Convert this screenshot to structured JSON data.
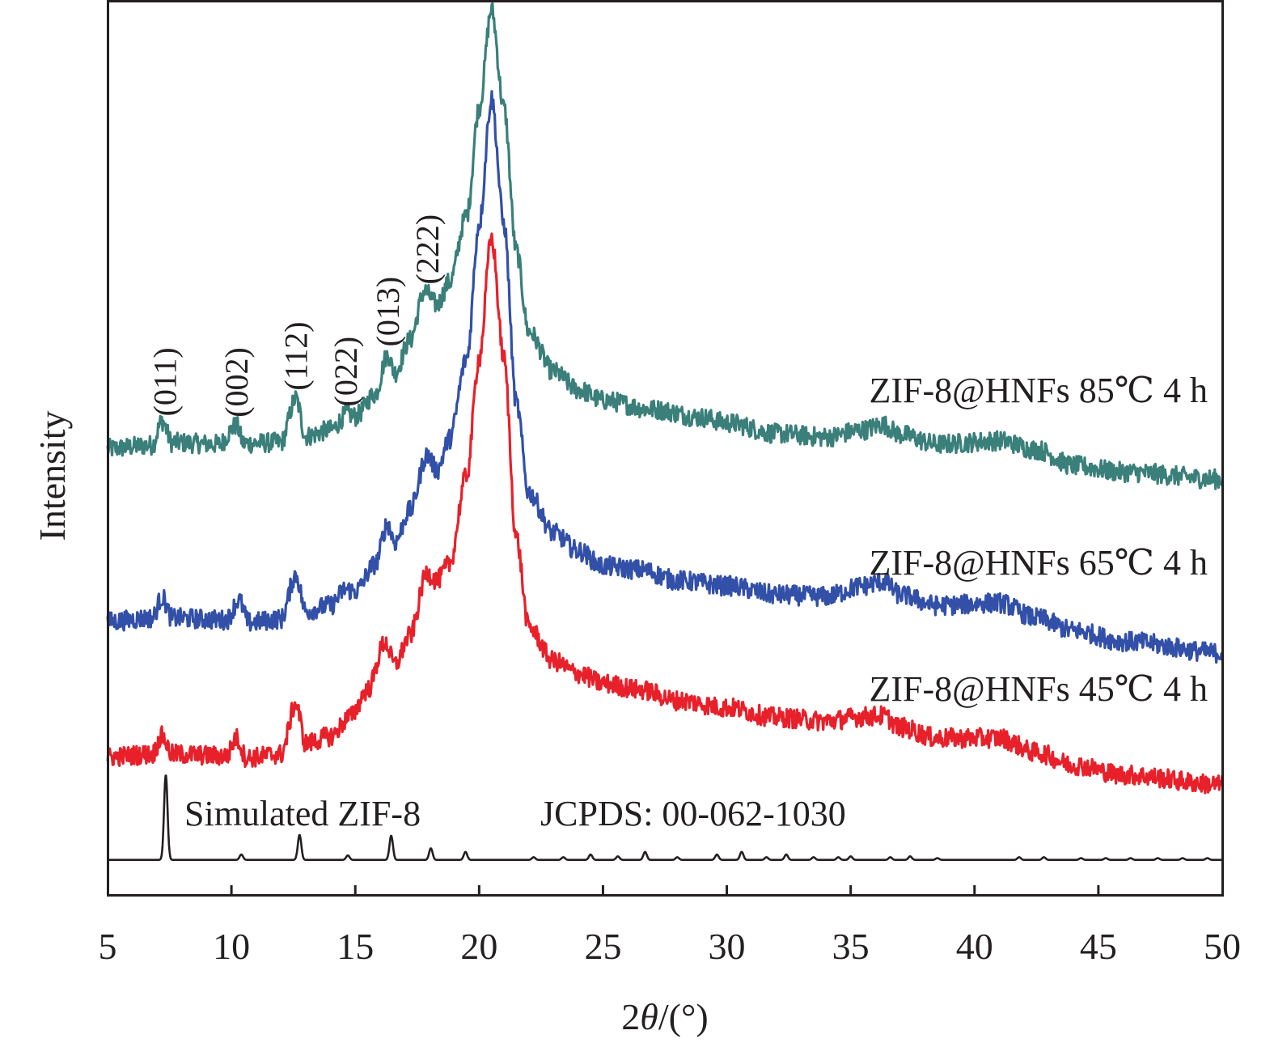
{
  "chart_data": {
    "type": "line",
    "title": "",
    "xlabel": "2θ/(°)",
    "xlabel_parts": {
      "prefix": "2",
      "italic": "θ",
      "suffix": "/(°)"
    },
    "ylabel": "Intensity",
    "xlim": [
      5,
      50
    ],
    "ylim": [
      0,
      100
    ],
    "y_units": "arbitrary (offset-stacked patterns, no y ticks)",
    "grid": false,
    "x_ticks": [
      5,
      10,
      15,
      20,
      25,
      30,
      35,
      40,
      45,
      50
    ],
    "x_tick_labels": [
      "5",
      "10",
      "15",
      "20",
      "25",
      "30",
      "35",
      "40",
      "45",
      "50"
    ],
    "series": [
      {
        "name": "ZIF-8@HNFs 85℃ 4 h",
        "color": "#3a7f7a",
        "noise": 1.1,
        "points": [
          [
            5,
            49.9
          ],
          [
            6.8,
            50.3
          ],
          [
            7.2,
            53.0
          ],
          [
            7.6,
            50.6
          ],
          [
            9.5,
            50.4
          ],
          [
            10.2,
            52.5
          ],
          [
            10.5,
            50.5
          ],
          [
            12.0,
            50.6
          ],
          [
            12.6,
            55.5
          ],
          [
            13.0,
            51.3
          ],
          [
            14.0,
            52.0
          ],
          [
            14.7,
            53.8
          ],
          [
            15.0,
            53.5
          ],
          [
            15.8,
            56.0
          ],
          [
            16.3,
            60.4
          ],
          [
            16.6,
            58.4
          ],
          [
            17.2,
            62.0
          ],
          [
            17.8,
            67.5
          ],
          [
            18.3,
            66.0
          ],
          [
            18.8,
            68.5
          ],
          [
            19.5,
            76.0
          ],
          [
            20.0,
            88.0
          ],
          [
            20.5,
            98.9
          ],
          [
            21.0,
            88.0
          ],
          [
            21.5,
            72.0
          ],
          [
            22.0,
            63.0
          ],
          [
            23.0,
            58.5
          ],
          [
            24.0,
            56.5
          ],
          [
            25.0,
            55.3
          ],
          [
            27.0,
            54.3
          ],
          [
            29.0,
            53.4
          ],
          [
            30.0,
            52.8
          ],
          [
            32.0,
            51.6
          ],
          [
            34.0,
            51.2
          ],
          [
            35.5,
            52.0
          ],
          [
            36.3,
            52.6
          ],
          [
            37.0,
            51.5
          ],
          [
            38.5,
            50.4
          ],
          [
            41.0,
            50.8
          ],
          [
            42.5,
            49.8
          ],
          [
            44.0,
            48.0
          ],
          [
            46.0,
            47.3
          ],
          [
            50.0,
            46.5
          ]
        ]
      },
      {
        "name": "ZIF-8@HNFs 65℃ 4 h",
        "color": "#3250a8",
        "noise": 1.1,
        "points": [
          [
            5,
            30.6
          ],
          [
            6.8,
            31.0
          ],
          [
            7.2,
            33.3
          ],
          [
            7.6,
            31.0
          ],
          [
            9.8,
            30.8
          ],
          [
            10.3,
            33.0
          ],
          [
            10.7,
            30.5
          ],
          [
            12.0,
            30.9
          ],
          [
            12.6,
            35.8
          ],
          [
            13.0,
            31.8
          ],
          [
            14.0,
            32.4
          ],
          [
            14.6,
            34.2
          ],
          [
            15.0,
            34.0
          ],
          [
            15.8,
            37.0
          ],
          [
            16.3,
            41.5
          ],
          [
            16.6,
            39.5
          ],
          [
            17.2,
            43.0
          ],
          [
            17.9,
            49.2
          ],
          [
            18.3,
            47.5
          ],
          [
            18.8,
            51.0
          ],
          [
            19.5,
            60.0
          ],
          [
            20.0,
            75.0
          ],
          [
            20.5,
            89.0
          ],
          [
            21.0,
            75.0
          ],
          [
            21.5,
            55.0
          ],
          [
            22.0,
            45.0
          ],
          [
            23.0,
            40.5
          ],
          [
            24.0,
            38.5
          ],
          [
            25.0,
            36.8
          ],
          [
            26.5,
            36.4
          ],
          [
            28.0,
            35.2
          ],
          [
            30.0,
            34.6
          ],
          [
            32.0,
            33.6
          ],
          [
            34.0,
            33.4
          ],
          [
            35.5,
            34.6
          ],
          [
            36.3,
            35.1
          ],
          [
            37.0,
            33.6
          ],
          [
            38.5,
            32.4
          ],
          [
            41.0,
            32.7
          ],
          [
            42.5,
            31.0
          ],
          [
            44.0,
            29.6
          ],
          [
            46.0,
            28.4
          ],
          [
            50.0,
            27.1
          ]
        ]
      },
      {
        "name": "ZIF-8@HNFs 45℃ 4 h",
        "color": "#e8202a",
        "noise": 1.1,
        "points": [
          [
            5,
            15.5
          ],
          [
            6.8,
            15.8
          ],
          [
            7.2,
            17.8
          ],
          [
            7.6,
            15.8
          ],
          [
            9.8,
            15.6
          ],
          [
            10.2,
            17.6
          ],
          [
            10.6,
            15.4
          ],
          [
            12.0,
            15.8
          ],
          [
            12.6,
            21.4
          ],
          [
            13.0,
            17.0
          ],
          [
            14.0,
            17.8
          ],
          [
            14.8,
            20.0
          ],
          [
            15.5,
            23.0
          ],
          [
            16.2,
            28.3
          ],
          [
            16.6,
            25.8
          ],
          [
            17.2,
            29.0
          ],
          [
            17.9,
            36.0
          ],
          [
            18.3,
            35.2
          ],
          [
            18.8,
            37.0
          ],
          [
            19.5,
            47.0
          ],
          [
            20.0,
            60.0
          ],
          [
            20.5,
            73.4
          ],
          [
            21.0,
            60.0
          ],
          [
            21.5,
            40.0
          ],
          [
            22.0,
            30.0
          ],
          [
            23.0,
            26.2
          ],
          [
            24.0,
            24.8
          ],
          [
            25.0,
            23.7
          ],
          [
            26.5,
            23.0
          ],
          [
            28.0,
            21.8
          ],
          [
            30.0,
            21.0
          ],
          [
            32.0,
            19.9
          ],
          [
            34.0,
            19.5
          ],
          [
            35.5,
            20.0
          ],
          [
            36.3,
            20.1
          ],
          [
            37.0,
            18.8
          ],
          [
            38.5,
            17.6
          ],
          [
            41.0,
            17.6
          ],
          [
            42.5,
            16.0
          ],
          [
            44.0,
            14.6
          ],
          [
            46.0,
            13.5
          ],
          [
            50.0,
            12.4
          ]
        ]
      }
    ],
    "reference": {
      "name": "Simulated ZIF-8",
      "color": "#231f20",
      "baseline": 4.0,
      "peaks": [
        [
          7.35,
          13.5
        ],
        [
          10.4,
          4.6
        ],
        [
          12.75,
          6.8
        ],
        [
          14.7,
          4.5
        ],
        [
          16.45,
          6.7
        ],
        [
          18.05,
          5.3
        ],
        [
          19.45,
          4.9
        ],
        [
          22.2,
          4.3
        ],
        [
          23.4,
          4.3
        ],
        [
          24.5,
          4.6
        ],
        [
          25.6,
          4.4
        ],
        [
          26.7,
          4.9
        ],
        [
          28.0,
          4.3
        ],
        [
          29.6,
          4.6
        ],
        [
          30.6,
          4.9
        ],
        [
          31.6,
          4.3
        ],
        [
          32.4,
          4.6
        ],
        [
          33.5,
          4.3
        ],
        [
          34.5,
          4.3
        ],
        [
          35.0,
          4.4
        ],
        [
          36.6,
          4.3
        ],
        [
          37.4,
          4.4
        ],
        [
          38.5,
          4.2
        ],
        [
          41.8,
          4.3
        ],
        [
          42.8,
          4.3
        ],
        [
          44.3,
          4.2
        ],
        [
          45.3,
          4.2
        ],
        [
          46.3,
          4.2
        ],
        [
          47.4,
          4.2
        ],
        [
          48.4,
          4.2
        ],
        [
          49.4,
          4.2
        ]
      ]
    },
    "annotations": {
      "reference_label": "Simulated ZIF-8",
      "jcpds_label": "JCPDS: 00-062-1030",
      "hkl_labels": [
        {
          "text": "(011)",
          "x": 7.3
        },
        {
          "text": "(002)",
          "x": 10.2
        },
        {
          "text": "(112)",
          "x": 12.6
        },
        {
          "text": "(022)",
          "x": 14.6
        },
        {
          "text": "(013)",
          "x": 16.3
        },
        {
          "text": "(222)",
          "x": 17.9
        }
      ]
    }
  }
}
